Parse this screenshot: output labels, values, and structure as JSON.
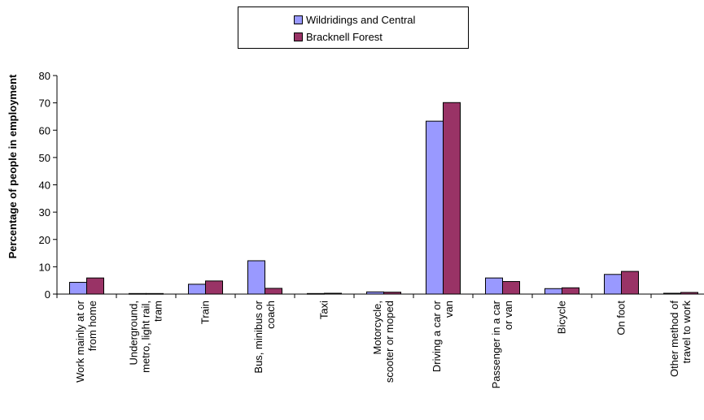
{
  "chart_data": {
    "type": "bar",
    "categories": [
      [
        "Work mainly at or",
        "from home"
      ],
      [
        "Underground,",
        "metro, light rail,",
        "tram"
      ],
      [
        "Train"
      ],
      [
        "Bus, minibus or",
        "coach"
      ],
      [
        "Taxi"
      ],
      [
        "Motorcycle,",
        "scooter or moped"
      ],
      [
        "Driving a car or",
        "van"
      ],
      [
        "Passenger in a car",
        "or van"
      ],
      [
        "Bicycle"
      ],
      [
        "On foot"
      ],
      [
        "Other method of",
        "travel to work"
      ]
    ],
    "series": [
      {
        "name": "Wildridings and Central",
        "color": "#9999ff",
        "values": [
          4.3,
          0.2,
          3.6,
          12.2,
          0.2,
          0.8,
          63.3,
          5.9,
          2.0,
          7.2,
          0.3
        ]
      },
      {
        "name": "Bracknell Forest",
        "color": "#993366",
        "values": [
          5.9,
          0.2,
          4.8,
          2.1,
          0.3,
          0.7,
          70.1,
          4.6,
          2.3,
          8.3,
          0.6
        ]
      }
    ],
    "ylabel": "Percentage of people in employment",
    "ylim": [
      0,
      80
    ],
    "yticks": [
      0,
      10,
      20,
      30,
      40,
      50,
      60,
      70,
      80
    ],
    "grid": false,
    "legend": "top-center"
  }
}
